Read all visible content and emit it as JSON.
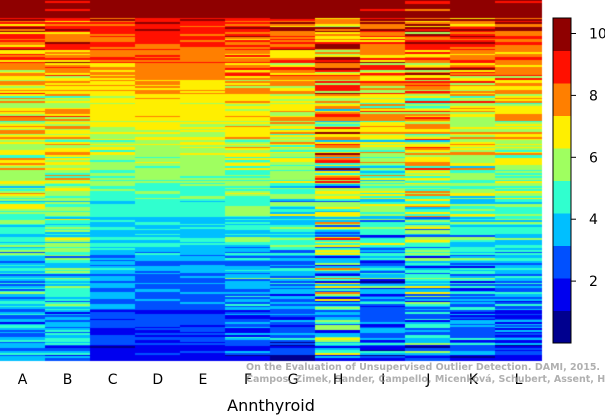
{
  "chart_data": {
    "type": "heatmap",
    "xlabel": "Annthyroid",
    "columns": [
      "A",
      "B",
      "C",
      "D",
      "E",
      "F",
      "G",
      "H",
      "I",
      "J",
      "K",
      "L"
    ],
    "rows_approx": 220,
    "sorted_by_mean_descending": true,
    "colorbar": {
      "min": 0,
      "max": 10.5,
      "ticks": [
        2,
        4,
        6,
        8,
        10
      ],
      "colormap": "jet",
      "bands": 10,
      "position": "right"
    },
    "column_profiles": [
      {
        "name": "A",
        "start": 9.2,
        "end": 3.0,
        "noise": 1.6
      },
      {
        "name": "B",
        "start": 9.2,
        "end": 3.2,
        "noise": 1.5
      },
      {
        "name": "C",
        "start": 9.6,
        "end": 1.8,
        "noise": 0.8
      },
      {
        "name": "D",
        "start": 9.9,
        "end": 1.6,
        "noise": 0.6
      },
      {
        "name": "E",
        "start": 9.8,
        "end": 1.6,
        "noise": 0.6
      },
      {
        "name": "F",
        "start": 9.5,
        "end": 2.2,
        "noise": 1.3
      },
      {
        "name": "G",
        "start": 9.6,
        "end": 2.0,
        "noise": 1.4
      },
      {
        "name": "H",
        "start": 9.2,
        "end": 3.5,
        "noise": 2.8
      },
      {
        "name": "I",
        "start": 9.6,
        "end": 2.0,
        "noise": 1.8
      },
      {
        "name": "J",
        "start": 9.4,
        "end": 3.0,
        "noise": 2.2
      },
      {
        "name": "K",
        "start": 9.4,
        "end": 2.2,
        "noise": 1.6
      },
      {
        "name": "L",
        "start": 9.6,
        "end": 2.0,
        "noise": 1.3
      }
    ]
  },
  "watermark": {
    "line1": "On the Evaluation of Unsupervised Outlier Detection. DAMI, 2015.",
    "line2": "Campos, Zimek, Sander, Campello, Micenková, Schubert, Assent, Houle"
  }
}
